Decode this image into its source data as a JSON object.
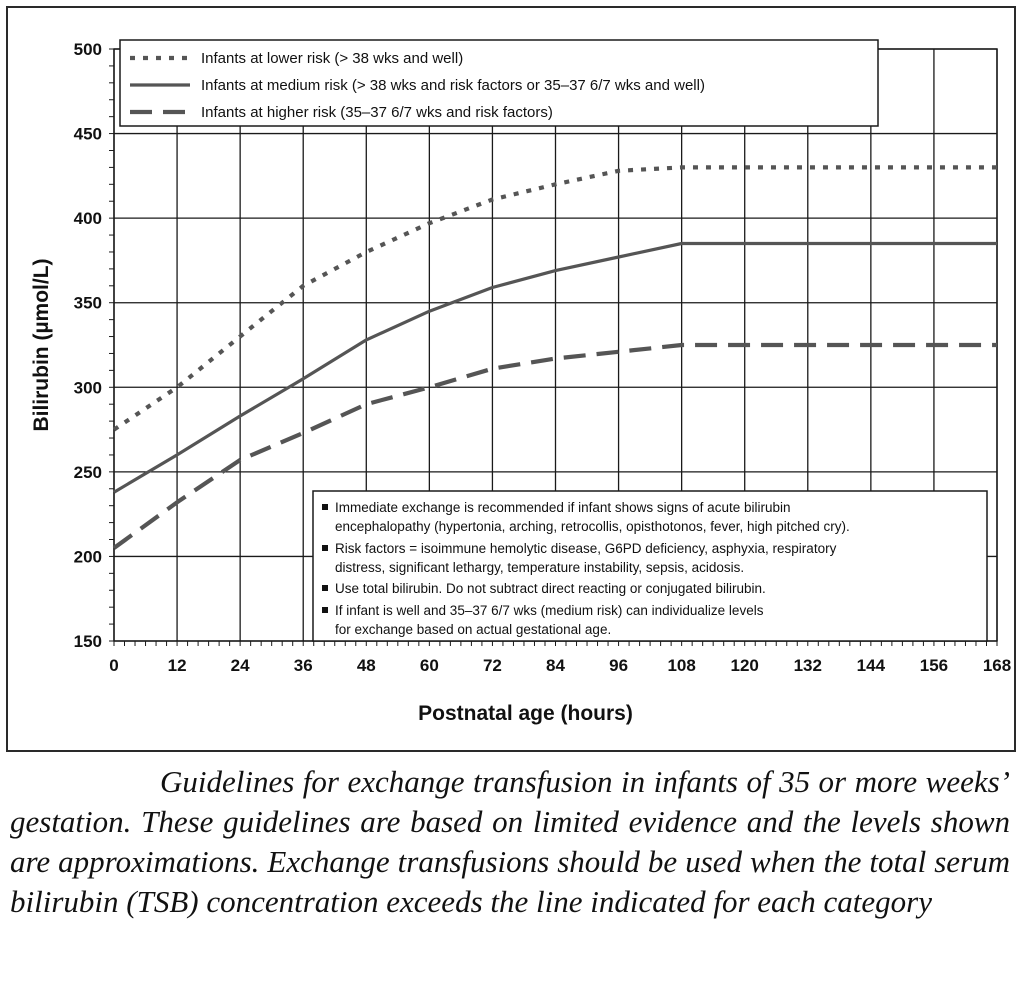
{
  "chart_data": {
    "type": "line",
    "title": "",
    "xlabel": "Postnatal age (hours)",
    "ylabel": "Bilirubin (µmol/L)",
    "xlim": [
      0,
      168
    ],
    "ylim": [
      150,
      500
    ],
    "x_ticks": [
      0,
      12,
      24,
      36,
      48,
      60,
      72,
      84,
      96,
      108,
      120,
      132,
      144,
      156,
      168
    ],
    "y_ticks": [
      150,
      200,
      250,
      300,
      350,
      400,
      450,
      500
    ],
    "grid": true,
    "legend_position": "top-left",
    "series": [
      {
        "name": "Infants at lower  risk (> 38 wks and well)",
        "style": "dotted",
        "x": [
          0,
          12,
          24,
          36,
          48,
          60,
          72,
          84,
          96,
          108,
          168
        ],
        "values": [
          275,
          300,
          330,
          360,
          380,
          397,
          411,
          420,
          428,
          430,
          430
        ]
      },
      {
        "name": "Infants at medium risk (> 38 wks and risk factors or 35–37 6/7 wks  and well)",
        "style": "solid",
        "x": [
          0,
          12,
          24,
          36,
          48,
          60,
          72,
          84,
          96,
          108,
          168
        ],
        "values": [
          238,
          260,
          283,
          305,
          328,
          345,
          359,
          369,
          377,
          385,
          385
        ]
      },
      {
        "name": "Infants at higher risk (35–37 6/7 wks and risk factors)",
        "style": "dashed",
        "x": [
          0,
          12,
          24,
          36,
          48,
          60,
          72,
          84,
          96,
          108,
          168
        ],
        "values": [
          205,
          232,
          257,
          273,
          290,
          300,
          311,
          317,
          321,
          325,
          325
        ]
      }
    ],
    "notes": [
      "Immediate exchange is recommended if infant shows signs of acute bilirubin",
      "encephalopathy (hypertonia, arching, retrocollis, opisthotonos, fever, high pitched cry).",
      "Risk factors = isoimmune hemolytic disease, G6PD deficiency, asphyxia, respiratory",
      "distress, significant lethargy, temperature instability, sepsis, acidosis.",
      "Use total bilirubin. Do not subtract direct reacting or conjugated bilirubin.",
      "If infant is well and 35–37 6/7 wks (medium risk) can individualize levels",
      "for exchange based on actual gestational age."
    ],
    "colors": {
      "line": "#555555",
      "grid": "#1a1a1a",
      "text": "#111111"
    }
  },
  "caption": "Guidelines for exchange transfusion in infants of 35 or more weeks’ gestation. These guidelines are based on limited evidence and the levels shown are approximations. Exchange transfusions should be used when the total serum bilirubin (TSB) concentration exceeds the line indicated for each category"
}
